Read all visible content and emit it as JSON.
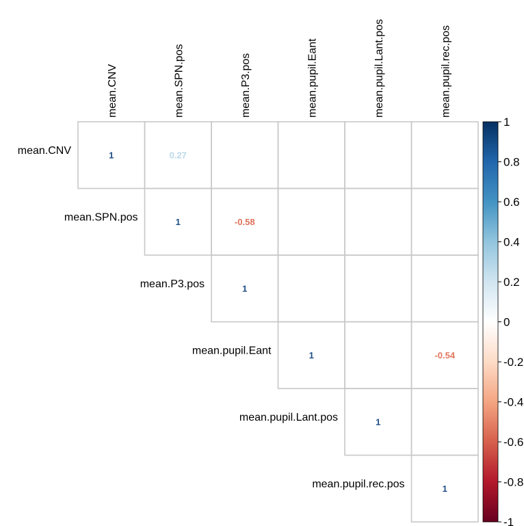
{
  "chart_data": {
    "type": "heatmap",
    "variables": [
      "mean.CNV",
      "mean.SPN.pos",
      "mean.P3.pos",
      "mean.pupil.Eant",
      "mean.pupil.Lant.pos",
      "mean.pupil.rec.pos"
    ],
    "cells": [
      {
        "row": 0,
        "col": 0,
        "label": "1",
        "value": 1.0,
        "color": "#1f4e86"
      },
      {
        "row": 0,
        "col": 1,
        "label": "0.27",
        "value": 0.27,
        "color": "#bcd9ea"
      },
      {
        "row": 1,
        "col": 1,
        "label": "1",
        "value": 1.0,
        "color": "#1f4e86"
      },
      {
        "row": 1,
        "col": 2,
        "label": "-0.58",
        "value": -0.58,
        "color": "#e0705a"
      },
      {
        "row": 2,
        "col": 2,
        "label": "1",
        "value": 1.0,
        "color": "#1f4e86"
      },
      {
        "row": 3,
        "col": 3,
        "label": "1",
        "value": 1.0,
        "color": "#1f4e86"
      },
      {
        "row": 3,
        "col": 5,
        "label": "-0.54",
        "value": -0.54,
        "color": "#e2775f"
      },
      {
        "row": 4,
        "col": 4,
        "label": "1",
        "value": 1.0,
        "color": "#1f4e86"
      },
      {
        "row": 5,
        "col": 5,
        "label": "1",
        "value": 1.0,
        "color": "#1f4e86"
      }
    ],
    "colorbar": {
      "range": [
        -1,
        1
      ],
      "ticks": [
        "1",
        "0.8",
        "0.6",
        "0.4",
        "0.2",
        "0",
        "-0.2",
        "-0.4",
        "-0.6",
        "-0.8",
        "-1"
      ],
      "colors": [
        "#053061",
        "#2166ac",
        "#4393c3",
        "#92c5de",
        "#d1e5f0",
        "#ffffff",
        "#fddbc7",
        "#f4a582",
        "#d6604d",
        "#b2182b",
        "#67001f"
      ]
    }
  }
}
